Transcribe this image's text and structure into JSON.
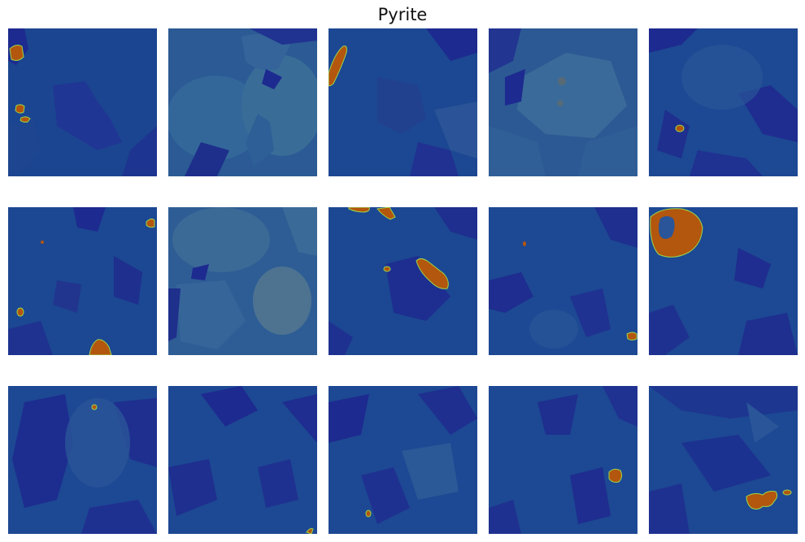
{
  "figure": {
    "title": "Pyrite"
  },
  "colors": {
    "background": "#ffffff",
    "matrix": "#1b4590",
    "grain": "#26559a",
    "pore": "#1d2a8f",
    "pyrite": "#b3560e",
    "pyrite_edge": "#9bd64a"
  },
  "panels": [
    {
      "name": "panel-r1-c1",
      "pyrite_present": true
    },
    {
      "name": "panel-r1-c2",
      "pyrite_present": false
    },
    {
      "name": "panel-r1-c3",
      "pyrite_present": true
    },
    {
      "name": "panel-r1-c4",
      "pyrite_present": false
    },
    {
      "name": "panel-r1-c5",
      "pyrite_present": true
    },
    {
      "name": "panel-r2-c1",
      "pyrite_present": true
    },
    {
      "name": "panel-r2-c2",
      "pyrite_present": false
    },
    {
      "name": "panel-r2-c3",
      "pyrite_present": true
    },
    {
      "name": "panel-r2-c4",
      "pyrite_present": true
    },
    {
      "name": "panel-r2-c5",
      "pyrite_present": true
    },
    {
      "name": "panel-r3-c1",
      "pyrite_present": true
    },
    {
      "name": "panel-r3-c2",
      "pyrite_present": true
    },
    {
      "name": "panel-r3-c3",
      "pyrite_present": true
    },
    {
      "name": "panel-r3-c4",
      "pyrite_present": true
    },
    {
      "name": "panel-r3-c5",
      "pyrite_present": true
    }
  ]
}
